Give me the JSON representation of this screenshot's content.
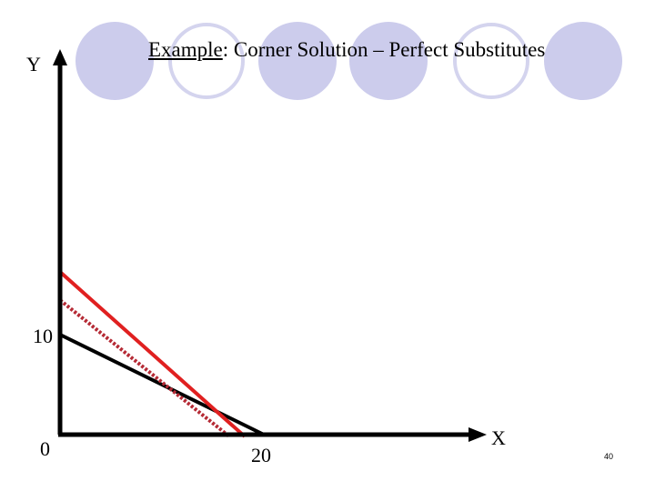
{
  "title": {
    "prefix": "Example",
    "rest": ": Corner Solution – Perfect Substitutes"
  },
  "axes": {
    "y_label": "Y",
    "x_label": "X",
    "y_tick": "10",
    "origin": "0",
    "x_tick": "20"
  },
  "slide_number": "40",
  "colors": {
    "axis": "#000000",
    "budget_line": "#000000",
    "indifference_curve": "#e02020",
    "dotted_curve": "#b52a35",
    "circle_fill": "#ccccec",
    "circle_outline": "#d4d4ee"
  }
}
